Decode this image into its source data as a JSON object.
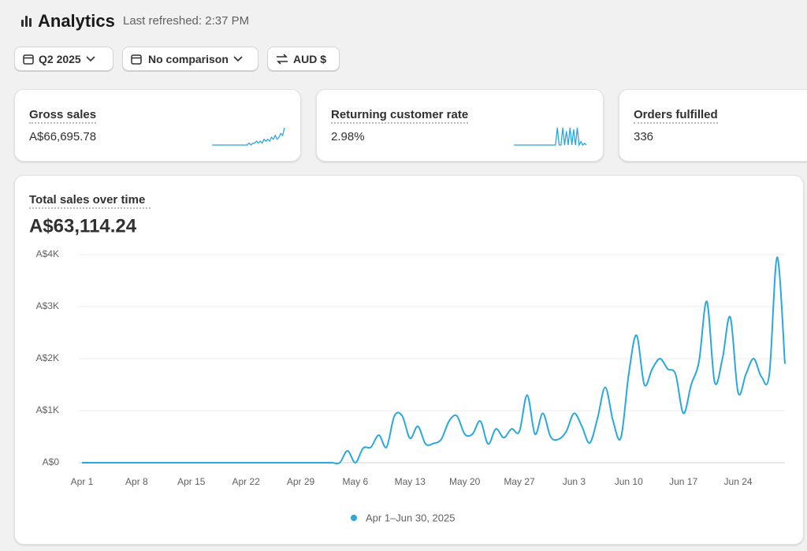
{
  "header": {
    "title": "Analytics",
    "subtitle": "Last refreshed: 2:37 PM"
  },
  "filters": [
    "Q2 2025",
    "No comparison",
    "AUD $"
  ],
  "metrics": [
    {
      "label": "Gross sales",
      "value": "A$66,695.78",
      "trend": [
        0,
        0,
        0,
        0,
        0,
        0,
        0,
        0,
        0,
        0,
        0,
        0,
        0,
        0,
        0,
        0,
        0,
        0,
        0,
        0,
        1,
        0,
        1,
        1,
        2,
        1,
        2,
        1,
        3,
        2,
        3,
        2,
        4,
        3,
        5,
        3,
        4,
        6,
        5,
        9
      ]
    },
    {
      "label": "Returning customer rate",
      "value": "2.98%",
      "trend": [
        0,
        0,
        0,
        0,
        0,
        0,
        0,
        0,
        0,
        0,
        0,
        0,
        0,
        0,
        0,
        0,
        0,
        0,
        0,
        0,
        0,
        0,
        0,
        0,
        10,
        0,
        0,
        10,
        0,
        8,
        0,
        10,
        0,
        9,
        0,
        10,
        0,
        2,
        0,
        1,
        0
      ]
    },
    {
      "label": "Orders fulfilled",
      "value": "336"
    }
  ],
  "chart_data": {
    "type": "line",
    "title": "Total sales over time",
    "subtitle": "A$63,114.24",
    "categories": [
      "Apr 1",
      null,
      null,
      null,
      null,
      null,
      null,
      "Apr 8",
      null,
      null,
      null,
      null,
      null,
      null,
      "Apr 15",
      null,
      null,
      null,
      null,
      null,
      null,
      "Apr 22",
      null,
      null,
      null,
      null,
      null,
      null,
      "Apr 29",
      null,
      null,
      null,
      null,
      null,
      null,
      "May 6",
      null,
      null,
      null,
      null,
      null,
      null,
      "May 13",
      null,
      null,
      null,
      null,
      null,
      null,
      "May 20",
      null,
      null,
      null,
      null,
      null,
      null,
      "May 27",
      null,
      null,
      null,
      null,
      null,
      null,
      "Jun 3",
      null,
      null,
      null,
      null,
      null,
      null,
      "Jun 10",
      null,
      null,
      null,
      null,
      null,
      null,
      "Jun 17",
      null,
      null,
      null,
      null,
      null,
      null,
      "Jun 24",
      null,
      null,
      null,
      null,
      null,
      null
    ],
    "series": [
      {
        "name": "Apr 1–Jun 30, 2025",
        "color": "#29a8e0",
        "values": [
          0,
          0,
          0,
          0,
          0,
          0,
          0,
          0,
          0,
          0,
          0,
          0,
          0,
          0,
          0,
          0,
          0,
          0,
          0,
          0,
          0,
          0,
          0,
          0,
          0,
          0,
          0,
          0,
          0,
          0,
          0,
          0,
          0,
          0,
          230,
          0,
          280,
          300,
          530,
          300,
          900,
          900,
          470,
          700,
          360,
          370,
          450,
          800,
          900,
          550,
          550,
          800,
          360,
          650,
          480,
          650,
          600,
          1300,
          550,
          950,
          500,
          450,
          600,
          950,
          700,
          380,
          850,
          1450,
          800,
          480,
          1700,
          2450,
          1500,
          1800,
          2000,
          1800,
          1700,
          950,
          1500,
          1950,
          3100,
          1550,
          2000,
          2800,
          1350,
          1700,
          2000,
          1650,
          1700,
          3950,
          1900
        ]
      }
    ],
    "ylim": [
      0,
      4000
    ],
    "yticks": [
      {
        "value": 0,
        "label": "A$0"
      },
      {
        "value": 1000,
        "label": "A$1K"
      },
      {
        "value": 2000,
        "label": "A$2K"
      },
      {
        "value": 3000,
        "label": "A$3K"
      },
      {
        "value": 4000,
        "label": "A$4K"
      }
    ],
    "grid": true
  }
}
